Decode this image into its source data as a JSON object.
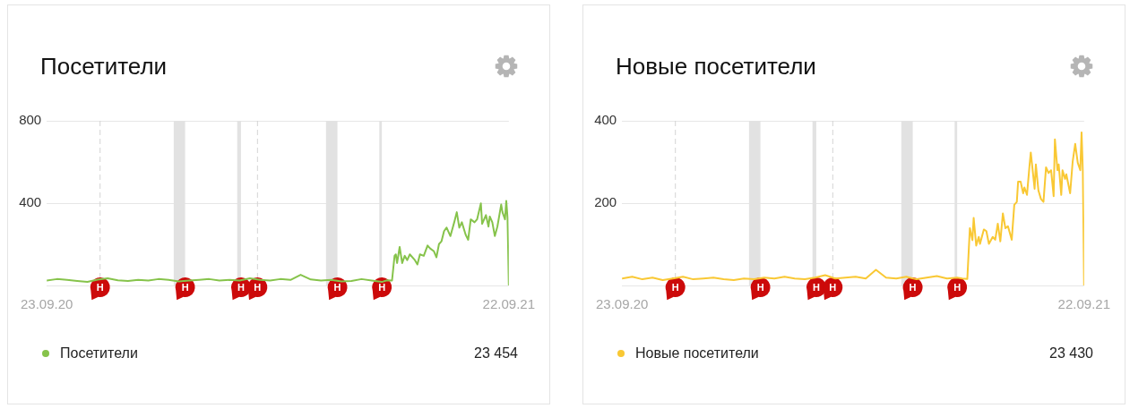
{
  "chart_data": [
    {
      "type": "line",
      "title": "Посетители",
      "xlim": [
        "2020-09-23",
        "2021-09-22"
      ],
      "xticks": [
        {
          "value": "2020-09-23",
          "label": "23.09.20"
        },
        {
          "value": "2021-09-22",
          "label": "22.09.21"
        }
      ],
      "ylim": [
        0,
        800
      ],
      "yticks": [
        {
          "value": 0,
          "label": null
        },
        400,
        800
      ],
      "grid": "y",
      "legend": "bottom",
      "marker": "none",
      "series": [
        {
          "name": "Посетители",
          "color": "#86c34b",
          "x": [
            "2020-09-23",
            "2020-10-01",
            "2020-10-09",
            "2020-10-17",
            "2020-10-25",
            "2020-11-02",
            "2020-11-10",
            "2020-11-18",
            "2020-11-26",
            "2020-12-04",
            "2020-12-12",
            "2020-12-20",
            "2020-12-28",
            "2021-01-05",
            "2021-01-13",
            "2021-01-21",
            "2021-01-29",
            "2021-02-06",
            "2021-02-14",
            "2021-02-22",
            "2021-03-02",
            "2021-03-10",
            "2021-03-18",
            "2021-03-26",
            "2021-04-03",
            "2021-04-11",
            "2021-04-19",
            "2021-04-27",
            "2021-05-05",
            "2021-05-13",
            "2021-05-21",
            "2021-05-29",
            "2021-06-06",
            "2021-06-14",
            "2021-06-18",
            "2021-06-22",
            "2021-06-24",
            "2021-06-25",
            "2021-06-26",
            "2021-06-28",
            "2021-06-30",
            "2021-07-02",
            "2021-07-04",
            "2021-07-06",
            "2021-07-10",
            "2021-07-12",
            "2021-07-14",
            "2021-07-17",
            "2021-07-20",
            "2021-07-22",
            "2021-07-25",
            "2021-07-27",
            "2021-07-29",
            "2021-07-31",
            "2021-08-02",
            "2021-08-04",
            "2021-08-07",
            "2021-08-10",
            "2021-08-12",
            "2021-08-14",
            "2021-08-16",
            "2021-08-19",
            "2021-08-21",
            "2021-08-23",
            "2021-08-26",
            "2021-08-28",
            "2021-08-31",
            "2021-09-01",
            "2021-09-04",
            "2021-09-06",
            "2021-09-07",
            "2021-09-09",
            "2021-09-11",
            "2021-09-13",
            "2021-09-16",
            "2021-09-17",
            "2021-09-19",
            "2021-09-20",
            "2021-09-21",
            "2021-09-22"
          ],
          "values": [
            24,
            31,
            27,
            22,
            17,
            28,
            35,
            25,
            22,
            27,
            24,
            31,
            27,
            20,
            24,
            27,
            31,
            24,
            27,
            24,
            35,
            27,
            24,
            31,
            27,
            52,
            29,
            24,
            27,
            20,
            22,
            31,
            24,
            17,
            25,
            24,
            144,
            151,
            109,
            187,
            109,
            144,
            123,
            151,
            123,
            102,
            151,
            144,
            194,
            180,
            166,
            137,
            201,
            215,
            264,
            281,
            240,
            307,
            356,
            281,
            307,
            247,
            222,
            321,
            307,
            321,
            399,
            299,
            342,
            286,
            335,
            307,
            240,
            286,
            393,
            356,
            321,
            411,
            330,
            3
          ]
        }
      ],
      "ref_lines": [
        {
          "axis": "x",
          "value": "2020-11-04",
          "label": "Н",
          "color": "#d4d4d4",
          "line_style": "dashed"
        },
        {
          "axis": "x",
          "value": "2021-03-08",
          "label": "Н",
          "color": "#d4d4d4",
          "line_style": "dashed"
        }
      ],
      "bands": [
        {
          "axis": "x",
          "from": "2021-01-01",
          "to": "2021-01-10",
          "label": "Н",
          "color": "#e2e2e2"
        },
        {
          "axis": "x",
          "from": "2021-02-20",
          "to": "2021-02-23",
          "label": "Н",
          "color": "#e2e2e2"
        },
        {
          "axis": "x",
          "from": "2021-05-01",
          "to": "2021-05-10",
          "label": "Н",
          "color": "#e2e2e2"
        },
        {
          "axis": "x",
          "from": "2021-06-12",
          "to": "2021-06-14",
          "label": "Н",
          "color": "#e2e2e2"
        }
      ],
      "annotations": [
        "23 454"
      ]
    },
    {
      "type": "line",
      "title": "Новые посетители",
      "xlim": [
        "2020-09-23",
        "2021-09-22"
      ],
      "xticks": [
        {
          "value": "2020-09-23",
          "label": "23.09.20"
        },
        {
          "value": "2021-09-22",
          "label": "22.09.21"
        }
      ],
      "ylim": [
        0,
        400
      ],
      "yticks": [
        {
          "value": 0,
          "label": null
        },
        200,
        400
      ],
      "grid": "y",
      "legend": "bottom",
      "marker": "none",
      "series": [
        {
          "name": "Новые посетители",
          "color": "#f9c834",
          "x": [
            "2020-09-23",
            "2020-10-01",
            "2020-10-09",
            "2020-10-17",
            "2020-10-25",
            "2020-11-02",
            "2020-11-10",
            "2020-11-18",
            "2020-11-26",
            "2020-12-04",
            "2020-12-12",
            "2020-12-20",
            "2020-12-28",
            "2021-01-05",
            "2021-01-13",
            "2021-01-21",
            "2021-01-29",
            "2021-02-06",
            "2021-02-14",
            "2021-02-22",
            "2021-03-02",
            "2021-03-10",
            "2021-03-18",
            "2021-03-26",
            "2021-04-03",
            "2021-04-11",
            "2021-04-19",
            "2021-04-27",
            "2021-05-05",
            "2021-05-13",
            "2021-05-21",
            "2021-05-29",
            "2021-06-06",
            "2021-06-14",
            "2021-06-18",
            "2021-06-22",
            "2021-06-24",
            "2021-06-26",
            "2021-06-27",
            "2021-06-29",
            "2021-07-01",
            "2021-07-02",
            "2021-07-05",
            "2021-07-07",
            "2021-07-09",
            "2021-07-12",
            "2021-07-14",
            "2021-07-16",
            "2021-07-18",
            "2021-07-20",
            "2021-07-22",
            "2021-07-24",
            "2021-07-26",
            "2021-07-27",
            "2021-07-29",
            "2021-07-31",
            "2021-08-01",
            "2021-08-03",
            "2021-08-05",
            "2021-08-06",
            "2021-08-08",
            "2021-08-10",
            "2021-08-11",
            "2021-08-14",
            "2021-08-15",
            "2021-08-17",
            "2021-08-19",
            "2021-08-21",
            "2021-08-23",
            "2021-08-25",
            "2021-08-27",
            "2021-08-29",
            "2021-08-30",
            "2021-09-01",
            "2021-09-02",
            "2021-09-04",
            "2021-09-05",
            "2021-09-07",
            "2021-09-08",
            "2021-09-11",
            "2021-09-13",
            "2021-09-15",
            "2021-09-17",
            "2021-09-19",
            "2021-09-20",
            "2021-09-21",
            "2021-09-22"
          ],
          "values": [
            17,
            21,
            15,
            19,
            13,
            17,
            21,
            15,
            17,
            19,
            15,
            13,
            17,
            15,
            19,
            17,
            21,
            17,
            15,
            19,
            25,
            17,
            19,
            21,
            17,
            38,
            19,
            17,
            21,
            15,
            19,
            23,
            17,
            19,
            17,
            16,
            139,
            110,
            164,
            97,
            118,
            101,
            136,
            132,
            101,
            118,
            111,
            150,
            107,
            175,
            139,
            144,
            122,
            111,
            196,
            203,
            252,
            252,
            224,
            238,
            220,
            291,
            323,
            235,
            294,
            231,
            210,
            203,
            287,
            273,
            280,
            217,
            355,
            280,
            294,
            220,
            280,
            259,
            270,
            224,
            301,
            344,
            298,
            280,
            372,
            280,
            1
          ]
        }
      ],
      "ref_lines": [
        {
          "axis": "x",
          "value": "2020-11-04",
          "label": "Н",
          "color": "#d4d4d4",
          "line_style": "dashed"
        },
        {
          "axis": "x",
          "value": "2021-03-08",
          "label": "Н",
          "color": "#d4d4d4",
          "line_style": "dashed"
        }
      ],
      "bands": [
        {
          "axis": "x",
          "from": "2021-01-01",
          "to": "2021-01-10",
          "label": "Н",
          "color": "#e2e2e2"
        },
        {
          "axis": "x",
          "from": "2021-02-20",
          "to": "2021-02-23",
          "label": "Н",
          "color": "#e2e2e2"
        },
        {
          "axis": "x",
          "from": "2021-05-01",
          "to": "2021-05-10",
          "label": "Н",
          "color": "#e2e2e2"
        },
        {
          "axis": "x",
          "from": "2021-06-12",
          "to": "2021-06-14",
          "label": "Н",
          "color": "#e2e2e2"
        }
      ],
      "annotations": [
        "23 430"
      ]
    }
  ]
}
